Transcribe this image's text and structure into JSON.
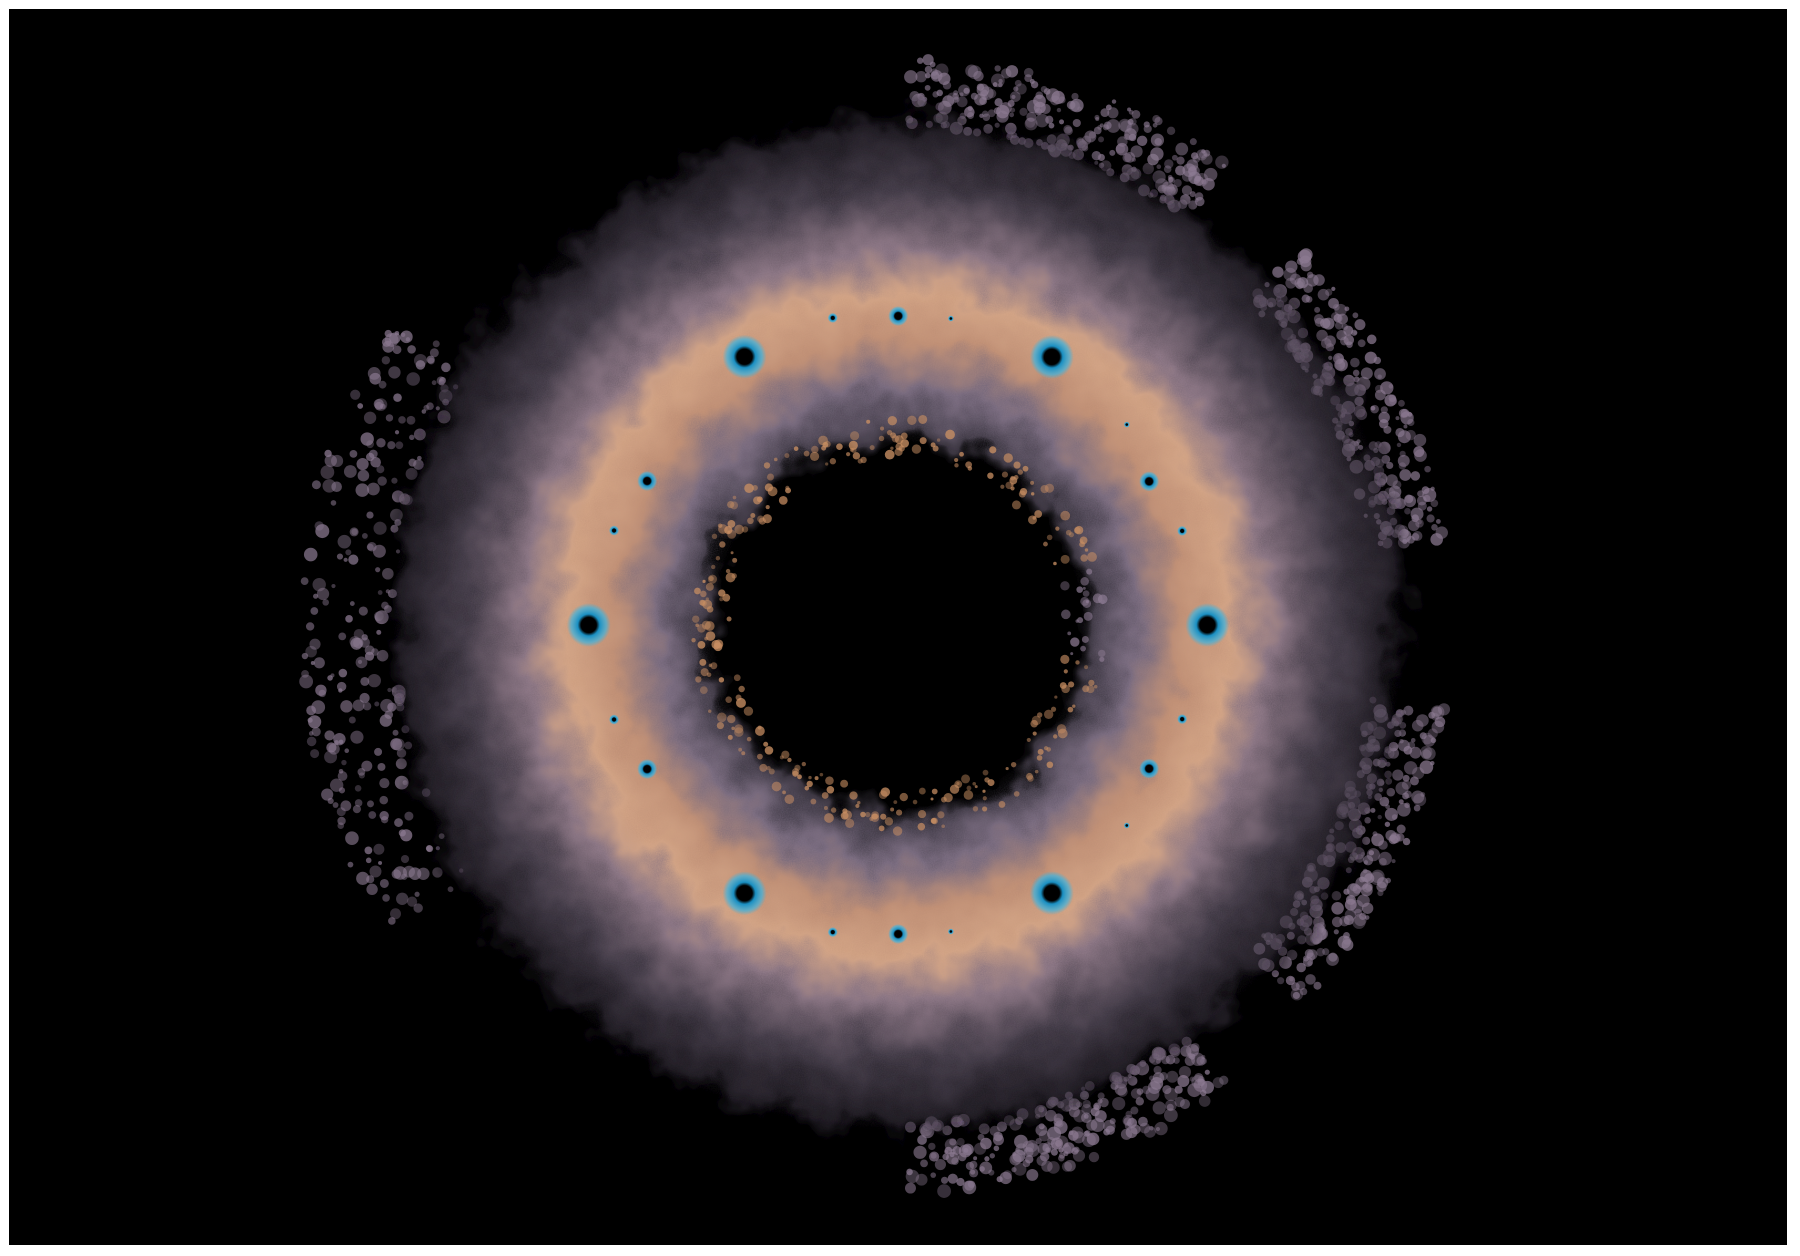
{
  "image": {
    "subject": "fractal-ring",
    "colors": {
      "background": "#000000",
      "page": "#ffffff",
      "haze_outer": "#6e6478",
      "haze_mid": "#8a7a90",
      "band": "#c7957a",
      "band_light": "#d9a98a",
      "lace": "#8c7a92",
      "lace_inner": "#c98f63",
      "spot": "#1a8fc2",
      "spot_light": "#3bb3e0",
      "spot_core": "#000000"
    },
    "spot_count": 22
  }
}
